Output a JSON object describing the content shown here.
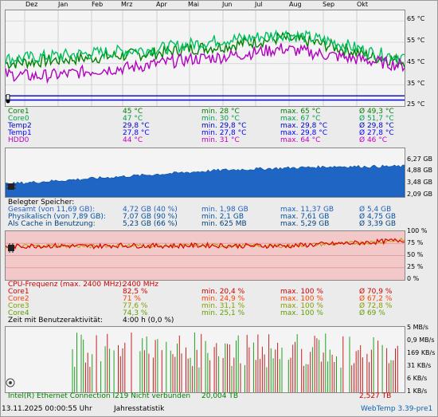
{
  "months": [
    "Dez",
    "Jan",
    "Feb",
    "Mrz",
    "Apr",
    "Mai",
    "Jun",
    "Jul",
    "Aug",
    "Sep",
    "Okt"
  ],
  "temp_panel": {
    "axis": [
      "65 °C",
      "55 °C",
      "45 °C",
      "35 °C",
      "25 °C"
    ],
    "rows": [
      {
        "name": "Core1",
        "value": "45 °C",
        "min": "min. 28 °C",
        "max": "max. 65 °C",
        "avg": "Ø 49,3 °C",
        "color": "#008000"
      },
      {
        "name": "Core0",
        "value": "47 °C",
        "min": "min. 30 °C",
        "max": "max. 67 °C",
        "avg": "Ø 51,7 °C",
        "color": "#00a050"
      },
      {
        "name": "Temp2",
        "value": "29,8 °C",
        "min": "min. 29,8 °C",
        "max": "max. 29,8 °C",
        "avg": "Ø 29,8 °C",
        "color": "#0000c0"
      },
      {
        "name": "Temp1",
        "value": "27,8 °C",
        "min": "min. 27,8 °C",
        "max": "max. 29,8 °C",
        "avg": "Ø 27,8 °C",
        "color": "#0000ff"
      },
      {
        "name": "HDD0",
        "value": "44 °C",
        "min": "min. 31 °C",
        "max": "max. 64 °C",
        "avg": "Ø 46 °C",
        "color": "#c000c0"
      }
    ],
    "chart_data": {
      "type": "line",
      "ylim": [
        25,
        70
      ],
      "series": [
        {
          "name": "Core1",
          "values": [
            45,
            46,
            47,
            48,
            49,
            50,
            52,
            53,
            55,
            57,
            55,
            52,
            48,
            46
          ]
        },
        {
          "name": "Core0",
          "values": [
            47,
            48,
            49,
            50,
            51,
            52,
            54,
            56,
            57,
            59,
            57,
            54,
            50,
            48
          ]
        },
        {
          "name": "HDD0",
          "values": [
            40,
            39,
            40,
            42,
            43,
            45,
            47,
            48,
            50,
            52,
            50,
            48,
            46,
            44
          ]
        },
        {
          "name": "Temp2",
          "values": [
            29.8,
            29.8,
            29.8,
            29.8,
            29.8,
            29.8,
            29.8,
            29.8,
            29.8,
            29.8,
            29.8,
            29.8,
            29.8,
            29.8
          ]
        },
        {
          "name": "Temp1",
          "values": [
            27.8,
            27.8,
            27.8,
            27.8,
            27.8,
            27.8,
            27.8,
            27.8,
            27.8,
            27.8,
            27.8,
            27.8,
            27.8,
            27.8
          ]
        }
      ]
    }
  },
  "mem_panel": {
    "axis": [
      "6,27 GB",
      "4,88 GB",
      "3,48 GB",
      "2,09 GB"
    ],
    "title": "Belegter Speicher:",
    "rows": [
      {
        "name": "Gesamt (von 11,69 GB):",
        "value": "4,72 GB (40 %)",
        "min": "min. 1,98 GB",
        "max": "max. 11,37 GB",
        "avg": "Ø 5,4 GB",
        "color": "#2060c0"
      },
      {
        "name": "Physikalisch (von 7,89 GB):",
        "value": "7,07 GB (90 %)",
        "min": "min. 2,1 GB",
        "max": "max. 7,61 GB",
        "avg": "Ø 4,75 GB",
        "color": "#0050a0"
      },
      {
        "name": "Als Cache in Benutzung:",
        "value": "5,23 GB (66 %)",
        "min": "min. 625 MB",
        "max": "max. 5,29 GB",
        "avg": "Ø 3,39 GB",
        "color": "#004080"
      }
    ],
    "chart_data": {
      "type": "area",
      "values": [
        3.2,
        3.4,
        3.6,
        3.8,
        4.0,
        4.2,
        4.4,
        4.5,
        4.6,
        4.7,
        4.7,
        4.72
      ],
      "ylim": [
        2.09,
        6.27
      ]
    }
  },
  "cpu_panel": {
    "axis": [
      "100 %",
      "75 %",
      "50 %",
      "25 %",
      "0 %"
    ],
    "title": "CPU-Frequenz (max. 2400 MHz):",
    "title_value": "2400 MHz",
    "rows": [
      {
        "name": "Core1",
        "value": "82,5 %",
        "min": "min. 20,4 %",
        "max": "max. 100 %",
        "avg": "Ø 70,9 %",
        "color": "#cc0000"
      },
      {
        "name": "Core2",
        "value": "71 %",
        "min": "min. 24,9 %",
        "max": "max. 100 %",
        "avg": "Ø 67,2 %",
        "color": "#ff4000"
      },
      {
        "name": "Core3",
        "value": "77,6 %",
        "min": "min. 31,1 %",
        "max": "max. 100 %",
        "avg": "Ø 72,8 %",
        "color": "#80a000"
      },
      {
        "name": "Core4",
        "value": "74,3 %",
        "min": "min. 25,1 %",
        "max": "max. 100 %",
        "avg": "Ø 69 %",
        "color": "#60a000"
      }
    ],
    "activity_label": "Zeit mit Benutzeraktivität:",
    "activity_value": "4:00 h (0,0 %)",
    "chart_data": {
      "type": "line",
      "ylim": [
        0,
        100
      ],
      "values": [
        68,
        70,
        70,
        69,
        71,
        70,
        70,
        71,
        70,
        70,
        70,
        73,
        75,
        78,
        82
      ]
    }
  },
  "net_panel": {
    "axis": [
      "5 MB/s",
      "0,9 MB/s",
      "169 KB/s",
      "31 KB/s",
      "6 KB/s",
      "1 KB/s"
    ],
    "label": "Intel(R) Ethernet Connection I219 Nicht verbunden",
    "sent": "20,004 TB",
    "recv": "2,527 TB"
  },
  "footer": {
    "timestamp": "13.11.2025 00:00:55 Uhr",
    "mode": "Jahresstatistik",
    "version": "WebTemp 3.39-pre1"
  }
}
